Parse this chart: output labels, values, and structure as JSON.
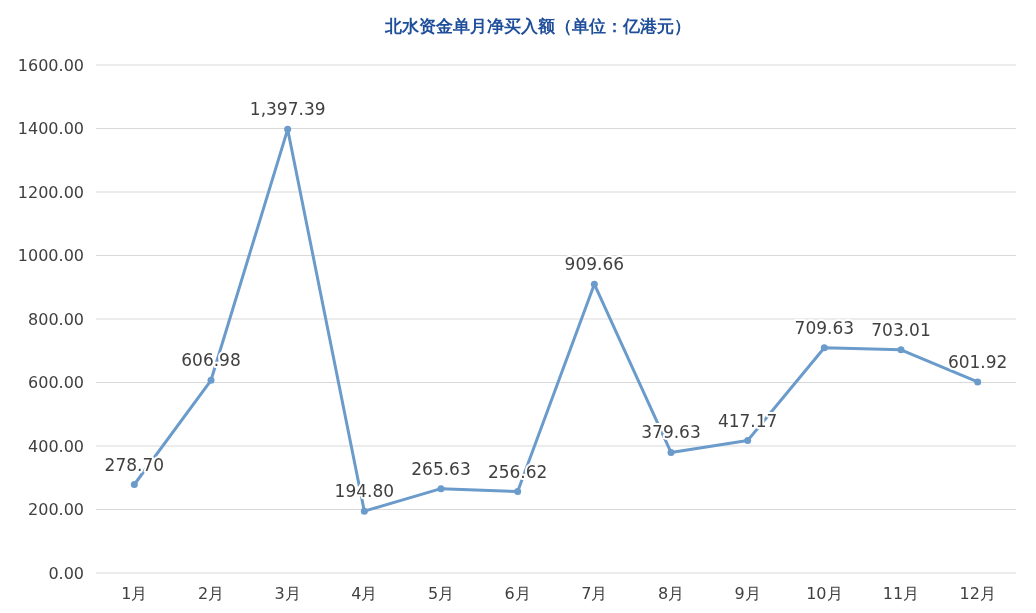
{
  "chart_data": {
    "type": "line",
    "title": "北水资金单月净买入额（单位：亿港元）",
    "categories": [
      "1月",
      "2月",
      "3月",
      "4月",
      "5月",
      "6月",
      "7月",
      "8月",
      "9月",
      "10月",
      "11月",
      "12月"
    ],
    "series": [
      {
        "color": "#6a9bcb",
        "values": [
          278.7,
          606.98,
          1397.39,
          194.8,
          265.63,
          256.62,
          909.66,
          379.63,
          417.17,
          709.63,
          703.01,
          601.92
        ],
        "value_labels": [
          "278.70",
          "606.98",
          "1,397.39",
          "194.80",
          "265.63",
          "256.62",
          "909.66",
          "379.63",
          "417.17",
          "709.63",
          "703.01",
          "601.92"
        ]
      }
    ],
    "ylim": [
      0,
      1600
    ],
    "yticks": [
      {
        "value": 0,
        "label": "0.00"
      },
      {
        "value": 200,
        "label": "200.00"
      },
      {
        "value": 400,
        "label": "400.00"
      },
      {
        "value": 600,
        "label": "600.00"
      },
      {
        "value": 800,
        "label": "800.00"
      },
      {
        "value": 1000,
        "label": "1000.00"
      },
      {
        "value": 1200,
        "label": "1200.00"
      },
      {
        "value": 1400,
        "label": "1400.00"
      },
      {
        "value": 1600,
        "label": "1600.00"
      }
    ],
    "grid": "y",
    "marker": "circle",
    "line_style": "solid"
  }
}
